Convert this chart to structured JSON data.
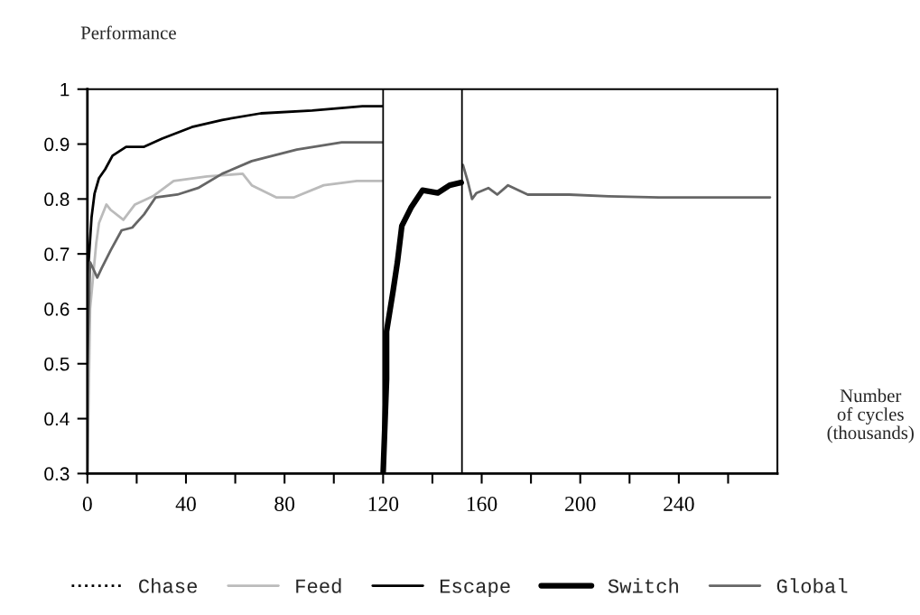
{
  "chart_data": {
    "type": "line",
    "ylabel": "Performance",
    "xlabel": "Number\nof cycles\n(thousands)",
    "xlim": [
      0,
      280
    ],
    "ylim": [
      0.3,
      1
    ],
    "xticks": [
      0,
      {
        "value": 20,
        "label": null
      },
      40,
      {
        "value": 60,
        "label": null
      },
      80,
      {
        "value": 100,
        "label": null
      },
      120,
      {
        "value": 140,
        "label": null
      },
      160,
      {
        "value": 180,
        "label": null
      },
      200,
      {
        "value": 220,
        "label": null
      },
      240,
      {
        "value": 260,
        "label": null
      }
    ],
    "yticks": [
      0.3,
      0.4,
      0.5,
      0.6,
      0.7,
      0.8,
      0.9,
      1
    ],
    "legend": "bottom",
    "grid": false,
    "ref_lines": [
      {
        "axis": "x",
        "value": 120,
        "color": "#000000"
      },
      {
        "axis": "x",
        "value": 152,
        "color": "#000000"
      }
    ],
    "series": [
      {
        "name": "Chase",
        "color": "#000000",
        "line_style": "dotted"
      },
      {
        "name": "Feed",
        "color": "#bbbbbb",
        "x": [
          0,
          1.1,
          3.6,
          4.7,
          7.7,
          9.5,
          14.6,
          19.3,
          26.6,
          35,
          48.5,
          63,
          66.7,
          76.6,
          83.9,
          95.9,
          109.4,
          119.6
        ],
        "values": [
          0.3,
          0.6,
          0.72,
          0.756,
          0.79,
          0.78,
          0.762,
          0.79,
          0.805,
          0.833,
          0.841,
          0.846,
          0.825,
          0.803,
          0.803,
          0.825,
          0.833,
          0.833
        ]
      },
      {
        "name": "Escape",
        "color": "#000000",
        "x": [
          0,
          1.7,
          2.9,
          4.7,
          7.2,
          10.2,
          15.7,
          23,
          30.3,
          42.4,
          54.7,
          70.4,
          91.2,
          111.6,
          119.6
        ],
        "values": [
          0.652,
          0.767,
          0.81,
          0.838,
          0.854,
          0.879,
          0.895,
          0.895,
          0.91,
          0.931,
          0.944,
          0.956,
          0.961,
          0.969,
          0.969
        ]
      },
      {
        "name": "Switch",
        "color": "#000000",
        "x": [
          120,
          121.4,
          121.4,
          124,
          125.8,
          127.6,
          131.3,
          136,
          142.2,
          147,
          151.7
        ],
        "values": [
          0.3,
          0.472,
          0.559,
          0.631,
          0.685,
          0.751,
          0.784,
          0.816,
          0.811,
          0.825,
          0.83
        ]
      },
      {
        "name": "Global",
        "color": "#666666",
        "x": [
          0,
          1.1,
          4,
          5.8,
          9.5,
          13.9,
          18.2,
          23,
          27.7,
          36.5,
          44.9,
          54.7,
          66.7,
          85,
          103.2,
          119.6,
          136,
          152.4,
          154.3,
          156.1,
          157.9,
          162.7,
          166.3,
          170.7,
          178.7,
          195.5,
          211.5,
          232,
          277
        ],
        "values": [
          0.5,
          0.685,
          0.657,
          0.674,
          0.707,
          0.743,
          0.748,
          0.772,
          0.803,
          0.808,
          0.82,
          0.846,
          0.869,
          0.89,
          0.903,
          0.903,
          null,
          0.862,
          0.833,
          0.8,
          0.811,
          0.82,
          0.808,
          0.825,
          0.808,
          0.808,
          0.805,
          0.803,
          0.803
        ]
      }
    ]
  }
}
